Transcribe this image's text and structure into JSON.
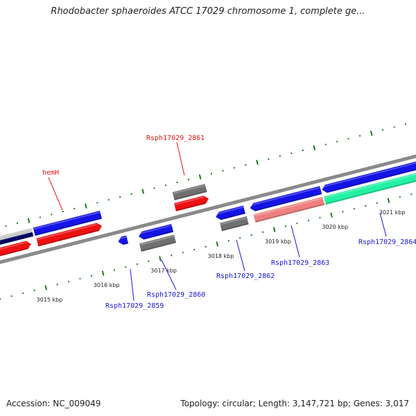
{
  "title": "Rhodobacter sphaeroides ATCC 17029 chromosome 1, complete ge...",
  "footer": {
    "accession": "Accession: NC_009049",
    "summary": "Topology: circular; Length: 3,147,721 bp; Genes: 3,017"
  },
  "colors": {
    "backbone": "#8a8a8a",
    "tick": "#1a7a1a",
    "forward_label": "#ee1111",
    "reverse_label": "#1515dd"
  },
  "chart_data": {
    "type": "genome-map",
    "tick_labels": [
      {
        "kbp": 3015,
        "text": "3015 kbp"
      },
      {
        "kbp": 3016,
        "text": "3016 kbp"
      },
      {
        "kbp": 3017,
        "text": "3017 kbp"
      },
      {
        "kbp": 3018,
        "text": "3018 kbp"
      },
      {
        "kbp": 3019,
        "text": "3019 kbp"
      },
      {
        "kbp": 3020,
        "text": "3020 kbp"
      },
      {
        "kbp": 3021,
        "text": "3021 kbp"
      }
    ],
    "features": [
      {
        "track": 0,
        "start": 3014.3,
        "end": 3015.01,
        "color": "#c4c4c4",
        "color2": "#000066",
        "strand": 0
      },
      {
        "track": 0,
        "start": 3015.04,
        "end": 3016.21,
        "color": "#1414e6",
        "strand": 0
      },
      {
        "track": 1,
        "start": 3014.3,
        "end": 3014.94,
        "color": "#ee1111",
        "strand": 1
      },
      {
        "track": 1,
        "start": 3015.05,
        "end": 3016.18,
        "color": "#ee1111",
        "strand": 1
      },
      {
        "track": 0,
        "start": 3017.48,
        "end": 3018.05,
        "color": "#707070",
        "strand": 0
      },
      {
        "track": 1,
        "start": 3017.46,
        "end": 3018.05,
        "color": "#ee1111",
        "strand": 1
      },
      {
        "track": 2,
        "start": 3016.38,
        "end": 3016.54,
        "color": "#1414e6",
        "strand": -1
      },
      {
        "track": 2,
        "start": 3016.74,
        "end": 3017.33,
        "color": "#1414e6",
        "strand": -1
      },
      {
        "track": 3,
        "start": 3016.72,
        "end": 3017.33,
        "color": "#707070",
        "strand": 0
      },
      {
        "track": 2,
        "start": 3018.09,
        "end": 3018.59,
        "color": "#1414e6",
        "strand": -1
      },
      {
        "track": 3,
        "start": 3018.13,
        "end": 3018.6,
        "color": "#707070",
        "strand": 0
      },
      {
        "track": 2,
        "start": 3018.69,
        "end": 3019.93,
        "color": "#1414e6",
        "strand": -1
      },
      {
        "track": 3,
        "start": 3018.72,
        "end": 3019.93,
        "color": "#ee8080",
        "strand": 0
      },
      {
        "track": 2,
        "start": 3019.95,
        "end": 3022.0,
        "color": "#1414e6",
        "strand": -1
      },
      {
        "track": 3,
        "start": 3019.95,
        "end": 3022.0,
        "color": "#22f2a2",
        "strand": 0
      }
    ],
    "gene_labels": [
      {
        "text": "hemH",
        "strand": "forward"
      },
      {
        "text": "Rsph17029_2861",
        "strand": "forward"
      },
      {
        "text": "Rsph17029_2859",
        "strand": "reverse"
      },
      {
        "text": "Rsph17029_2860",
        "strand": "reverse"
      },
      {
        "text": "Rsph17029_2862",
        "strand": "reverse"
      },
      {
        "text": "Rsph17029_2863",
        "strand": "reverse"
      },
      {
        "text": "Rsph17029_2864",
        "strand": "reverse"
      }
    ]
  }
}
